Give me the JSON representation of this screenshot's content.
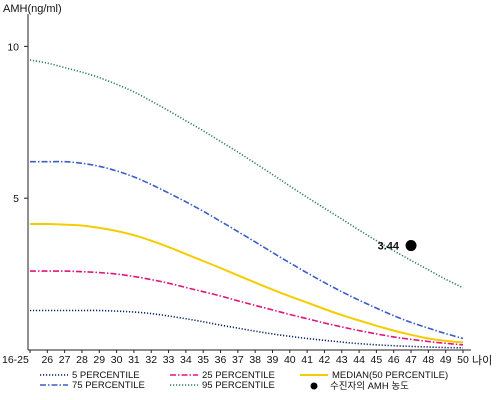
{
  "chart_data": {
    "type": "line",
    "title": "",
    "ylabel": "AMH(ng/ml)",
    "xlabel": "나이",
    "ylim": [
      0,
      11
    ],
    "yticks": [
      5,
      10
    ],
    "categories": [
      "16-25",
      "26",
      "27",
      "28",
      "29",
      "30",
      "31",
      "32",
      "33",
      "34",
      "35",
      "36",
      "37",
      "38",
      "39",
      "40",
      "41",
      "42",
      "43",
      "44",
      "45",
      "46",
      "47",
      "48",
      "49",
      "50"
    ],
    "series": [
      {
        "name": "5 PERCENTILE",
        "color": "#0a1f6b",
        "style": "dotted",
        "values": [
          1.3,
          1.3,
          1.3,
          1.3,
          1.3,
          1.28,
          1.25,
          1.2,
          1.12,
          1.03,
          0.93,
          0.82,
          0.72,
          0.62,
          0.53,
          0.45,
          0.38,
          0.32,
          0.26,
          0.21,
          0.17,
          0.14,
          0.12,
          0.1,
          0.08,
          0.07
        ]
      },
      {
        "name": "25 PERCENTILE",
        "color": "#e0157f",
        "style": "dashdot",
        "values": [
          2.6,
          2.6,
          2.6,
          2.58,
          2.55,
          2.5,
          2.42,
          2.32,
          2.2,
          2.06,
          1.92,
          1.78,
          1.62,
          1.47,
          1.32,
          1.17,
          1.03,
          0.89,
          0.76,
          0.64,
          0.53,
          0.43,
          0.35,
          0.28,
          0.22,
          0.17
        ]
      },
      {
        "name": "MEDIAN(50 PERCENTILE)",
        "color": "#f5cc00",
        "style": "solid",
        "values": [
          4.15,
          4.15,
          4.13,
          4.1,
          4.02,
          3.92,
          3.78,
          3.6,
          3.39,
          3.16,
          2.93,
          2.7,
          2.46,
          2.22,
          1.99,
          1.77,
          1.56,
          1.35,
          1.15,
          0.97,
          0.8,
          0.64,
          0.5,
          0.38,
          0.3,
          0.25
        ]
      },
      {
        "name": "75 PERCENTILE",
        "color": "#3a5fc8",
        "style": "dashdot",
        "values": [
          6.2,
          6.2,
          6.2,
          6.15,
          6.05,
          5.9,
          5.7,
          5.45,
          5.17,
          4.88,
          4.57,
          4.24,
          3.9,
          3.56,
          3.21,
          2.87,
          2.54,
          2.22,
          1.92,
          1.64,
          1.38,
          1.13,
          0.91,
          0.72,
          0.54,
          0.38
        ]
      },
      {
        "name": "95 PERCENTILE",
        "color": "#2e7d5b",
        "style": "dotted",
        "values": [
          9.55,
          9.45,
          9.3,
          9.15,
          8.97,
          8.75,
          8.5,
          8.2,
          7.88,
          7.55,
          7.22,
          6.87,
          6.52,
          6.15,
          5.78,
          5.4,
          5.03,
          4.67,
          4.31,
          3.95,
          3.6,
          3.27,
          2.95,
          2.64,
          2.33,
          2.05
        ]
      }
    ],
    "highlight": {
      "name": "수진자의 AMH 농도",
      "x": "47",
      "y": 3.44,
      "label": "3.44",
      "color": "#000000"
    },
    "legend_position": "bottom"
  }
}
